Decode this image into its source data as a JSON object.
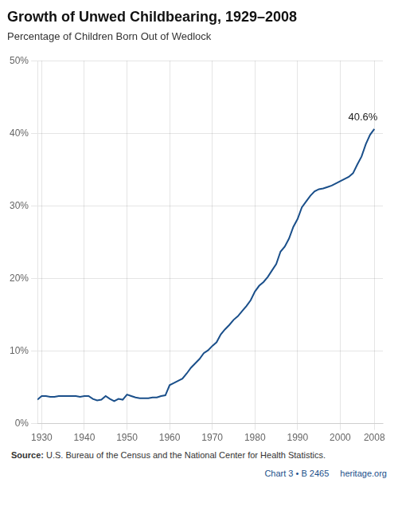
{
  "chart_data": {
    "type": "line",
    "title": "Growth of Unwed Childbearing, 1929–2008",
    "subtitle": "Percentage of Children Born Out of Wedlock",
    "source_label": "Source:",
    "source_text": "U.S. Bureau of the Census and the National Center for Health Statistics.",
    "credits": [
      "Chart 3 • B 2465",
      "heritage.org"
    ],
    "annotations": [
      {
        "text": "40.6%",
        "x": 2008,
        "y": 0.406
      }
    ],
    "color": "#1a4f8a",
    "grid": true,
    "xlim": [
      1929,
      2010
    ],
    "ylim": [
      0.0,
      0.5
    ],
    "xticks": [
      1930,
      1940,
      1950,
      1960,
      1970,
      1980,
      1990,
      2000,
      2008
    ],
    "yticks": [
      {
        "value": 0.0,
        "label": "0%"
      },
      {
        "value": 0.1,
        "label": "10%"
      },
      {
        "value": 0.2,
        "label": "20%"
      },
      {
        "value": 0.3,
        "label": "30%"
      },
      {
        "value": 0.4,
        "label": "40%"
      },
      {
        "value": 0.5,
        "label": "50%"
      }
    ],
    "x": [
      1929,
      1930,
      1931,
      1932,
      1933,
      1934,
      1935,
      1936,
      1937,
      1938,
      1939,
      1940,
      1941,
      1942,
      1943,
      1944,
      1945,
      1946,
      1947,
      1948,
      1949,
      1950,
      1951,
      1952,
      1953,
      1954,
      1955,
      1956,
      1957,
      1958,
      1959,
      1960,
      1961,
      1962,
      1963,
      1964,
      1965,
      1966,
      1967,
      1968,
      1969,
      1970,
      1971,
      1972,
      1973,
      1974,
      1975,
      1976,
      1977,
      1978,
      1979,
      1980,
      1981,
      1982,
      1983,
      1984,
      1985,
      1986,
      1987,
      1988,
      1989,
      1990,
      1991,
      1992,
      1993,
      1994,
      1995,
      1996,
      1997,
      1998,
      1999,
      2000,
      2001,
      2002,
      2003,
      2004,
      2005,
      2006,
      2007,
      2008
    ],
    "values": [
      0.033,
      0.038,
      0.038,
      0.037,
      0.037,
      0.038,
      0.038,
      0.038,
      0.038,
      0.038,
      0.037,
      0.038,
      0.038,
      0.034,
      0.032,
      0.033,
      0.038,
      0.034,
      0.031,
      0.034,
      0.033,
      0.04,
      0.038,
      0.036,
      0.035,
      0.035,
      0.035,
      0.036,
      0.036,
      0.038,
      0.039,
      0.053,
      0.056,
      0.059,
      0.062,
      0.069,
      0.077,
      0.083,
      0.089,
      0.097,
      0.101,
      0.107,
      0.112,
      0.123,
      0.13,
      0.136,
      0.143,
      0.148,
      0.155,
      0.162,
      0.17,
      0.182,
      0.19,
      0.195,
      0.202,
      0.211,
      0.22,
      0.237,
      0.244,
      0.255,
      0.271,
      0.282,
      0.298,
      0.306,
      0.314,
      0.32,
      0.323,
      0.324,
      0.326,
      0.328,
      0.331,
      0.334,
      0.337,
      0.34,
      0.345,
      0.357,
      0.368,
      0.385,
      0.398,
      0.406
    ]
  }
}
